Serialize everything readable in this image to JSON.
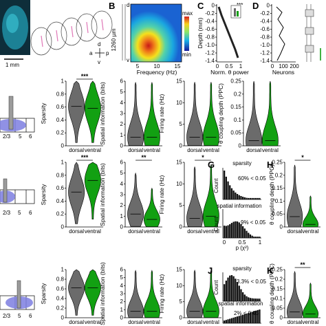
{
  "colors": {
    "dorsal": "#6b6b6b",
    "ventral": "#12a012",
    "slice": "#1f8fa6",
    "lens": "#7d7ee0",
    "pink": "#e07ab8"
  },
  "panel_a": {
    "scale_bar": "1 mm"
  },
  "panel_b": {
    "letter": "B",
    "depth_label": "1260 µm",
    "colorbar_max": "max",
    "colorbar_min": "min",
    "xlabel": "Frequency (Hz)",
    "xticks": [
      "5",
      "10",
      "15"
    ],
    "marker_d": "d",
    "marker_v": "v"
  },
  "panel_c": {
    "letter": "C",
    "ylabel": "Depth (mm)",
    "xlabel": "Norm. θ power",
    "xticks": [
      "0",
      "0.5",
      "1"
    ],
    "yticks": [
      "0",
      "-0.2",
      "-0.4",
      "-0.6",
      "-0.8",
      "-1.0",
      "-1.2",
      "-1.4"
    ],
    "inset_star": "***"
  },
  "panel_d": {
    "letter": "D",
    "xlabel": "Neurons",
    "xticks": [
      "0",
      "100",
      "200"
    ],
    "yticks": [
      "0",
      "-0.2",
      "-0.4",
      "-0.6",
      "-0.8",
      "-1.0",
      "-1.2",
      "-1.4"
    ]
  },
  "schematics": {
    "layer_labels": [
      "2/3",
      "5",
      "6"
    ]
  },
  "categories": [
    "dorsal",
    "ventral"
  ],
  "ylabels": {
    "sparsity": "Sparsity",
    "spatial": "Spatial information (bits)",
    "firing": "Firing rate (Hz)",
    "theta": "θ coupling depth (PPC)"
  },
  "inset_g": {
    "letter": "G",
    "title1": "sparsity",
    "pct1": "60% < 0.05",
    "title2": "spatial information",
    "pct2": "9% < 0.05",
    "ylabel": "Count",
    "xlabel": "p (χ²)",
    "xticks": [
      "0",
      "0.5",
      "1"
    ]
  },
  "inset_j": {
    "letter": "J",
    "title1": "sparsity",
    "pct1": "3.3% < 0.05",
    "title2": "spatial information",
    "pct2": "2% < 0.05",
    "ylabel": "Count",
    "xlabel": "p (χ²)",
    "xticks": [
      "0",
      "0.5",
      "1"
    ]
  },
  "panel_h": {
    "letter": "H"
  },
  "panel_k": {
    "letter": "K"
  },
  "chart_data": [
    {
      "type": "violin",
      "row": 1,
      "name": "row1-sparsity",
      "categories": [
        "dorsal",
        "ventral"
      ],
      "ylabel": "Sparsity",
      "ylim": [
        0,
        1
      ],
      "yticks": [
        "0",
        "0.2",
        "0.4",
        "0.6",
        "0.8",
        "1"
      ],
      "median": [
        0.61,
        0.58
      ],
      "range": [
        [
          0.05,
          1.0
        ],
        [
          0.05,
          1.0
        ]
      ],
      "sig": "***"
    },
    {
      "type": "violin",
      "row": 1,
      "name": "row1-spatial",
      "categories": [
        "dorsal",
        "ventral"
      ],
      "ylabel": "Spatial information (bits)",
      "ylim": [
        0,
        6
      ],
      "yticks": [
        "0",
        "1",
        "2",
        "3",
        "4",
        "5",
        "6"
      ],
      "median": [
        0.8,
        0.8
      ],
      "range": [
        [
          0.02,
          5.9
        ],
        [
          0.02,
          5.9
        ]
      ],
      "sig": ""
    },
    {
      "type": "violin",
      "row": 1,
      "name": "row1-firing",
      "categories": [
        "dorsal",
        "ventral"
      ],
      "ylabel": "Firing rate (Hz)",
      "ylim": [
        0,
        15
      ],
      "yticks": [
        "0",
        "5",
        "10",
        "15"
      ],
      "median": [
        2.0,
        2.0
      ],
      "range": [
        [
          0.05,
          14.8
        ],
        [
          0.05,
          14.8
        ]
      ],
      "sig": ""
    },
    {
      "type": "violin",
      "row": 1,
      "name": "row1-theta",
      "categories": [
        "dorsal",
        "ventral"
      ],
      "ylabel": "θ coupling depth (PPC)",
      "ylim": [
        0,
        0.25
      ],
      "yticks": [
        "0",
        "0.05",
        "0.1",
        "0.15",
        "0.2",
        "0.25"
      ],
      "median": [
        0.02,
        0.02
      ],
      "range": [
        [
          0.0,
          0.25
        ],
        [
          0.0,
          0.25
        ]
      ],
      "sig": ""
    },
    {
      "type": "violin",
      "row": 2,
      "name": "row2-sparsity",
      "categories": [
        "dorsal",
        "ventral"
      ],
      "ylabel": "Sparsity",
      "ylim": [
        0,
        1
      ],
      "yticks": [
        "0",
        "0.2",
        "0.4",
        "0.6",
        "0.8",
        "1"
      ],
      "median": [
        0.54,
        0.72
      ],
      "range": [
        [
          0.05,
          1.0
        ],
        [
          0.12,
          1.0
        ]
      ],
      "sig": "***"
    },
    {
      "type": "violin",
      "row": 2,
      "name": "row2-spatial",
      "categories": [
        "dorsal",
        "ventral"
      ],
      "ylabel": "Spatial information (bits)",
      "ylim": [
        0,
        6
      ],
      "yticks": [
        "0",
        "1",
        "2",
        "3",
        "4",
        "5",
        "6"
      ],
      "median": [
        1.2,
        0.7
      ],
      "range": [
        [
          0.05,
          5.0
        ],
        [
          0.02,
          3.6
        ]
      ],
      "sig": "**"
    },
    {
      "type": "violin",
      "row": 2,
      "name": "row2-firing",
      "categories": [
        "dorsal",
        "ventral"
      ],
      "ylabel": "Firing rate (Hz)",
      "ylim": [
        0,
        15
      ],
      "yticks": [
        "0",
        "5",
        "10",
        "15"
      ],
      "median": [
        2.0,
        2.5
      ],
      "range": [
        [
          0.05,
          14.0
        ],
        [
          0.05,
          14.5
        ]
      ],
      "sig": "*"
    },
    {
      "type": "violin",
      "row": 2,
      "name": "row2-theta",
      "categories": [
        "dorsal",
        "ventral"
      ],
      "ylabel": "θ coupling depth (PPC)",
      "ylim": [
        0,
        0.25
      ],
      "yticks": [
        "0",
        "0.05",
        "0.1",
        "0.15",
        "0.2",
        "0.25"
      ],
      "median": [
        0.04,
        0.01
      ],
      "range": [
        [
          0.0,
          0.24
        ],
        [
          0.0,
          0.12
        ]
      ],
      "sig": "*"
    },
    {
      "type": "violin",
      "row": 3,
      "name": "row3-sparsity",
      "categories": [
        "dorsal",
        "ventral"
      ],
      "ylabel": "Sparsity",
      "ylim": [
        0,
        1
      ],
      "yticks": [
        "0",
        "0.2",
        "0.4",
        "0.6",
        "0.8",
        "1"
      ],
      "median": [
        0.62,
        0.62
      ],
      "range": [
        [
          0.05,
          1.0
        ],
        [
          0.05,
          1.0
        ]
      ],
      "sig": ""
    },
    {
      "type": "violin",
      "row": 3,
      "name": "row3-spatial",
      "categories": [
        "dorsal",
        "ventral"
      ],
      "ylabel": "Spatial information (bits)",
      "ylim": [
        0,
        6
      ],
      "yticks": [
        "0",
        "1",
        "2",
        "3",
        "4",
        "5",
        "6"
      ],
      "median": [
        0.8,
        0.8
      ],
      "range": [
        [
          0.02,
          5.9
        ],
        [
          0.02,
          5.9
        ]
      ],
      "sig": ""
    },
    {
      "type": "violin",
      "row": 3,
      "name": "row3-firing",
      "categories": [
        "dorsal",
        "ventral"
      ],
      "ylabel": "Firing rate (Hz)",
      "ylim": [
        0,
        15
      ],
      "yticks": [
        "0",
        "5",
        "10",
        "15"
      ],
      "median": [
        2.0,
        2.0
      ],
      "range": [
        [
          0.05,
          14.8
        ],
        [
          0.05,
          14.8
        ]
      ],
      "sig": ""
    },
    {
      "type": "violin",
      "row": 3,
      "name": "row3-theta",
      "categories": [
        "dorsal",
        "ventral"
      ],
      "ylabel": "θ coupling depth (PPC)",
      "ylim": [
        0,
        0.25
      ],
      "yticks": [
        "0",
        "0.05",
        "0.1",
        "0.15",
        "0.2",
        "0.25"
      ],
      "median": [
        0.03,
        0.02
      ],
      "range": [
        [
          0.0,
          0.24
        ],
        [
          0.0,
          0.18
        ]
      ],
      "sig": "**"
    }
  ]
}
